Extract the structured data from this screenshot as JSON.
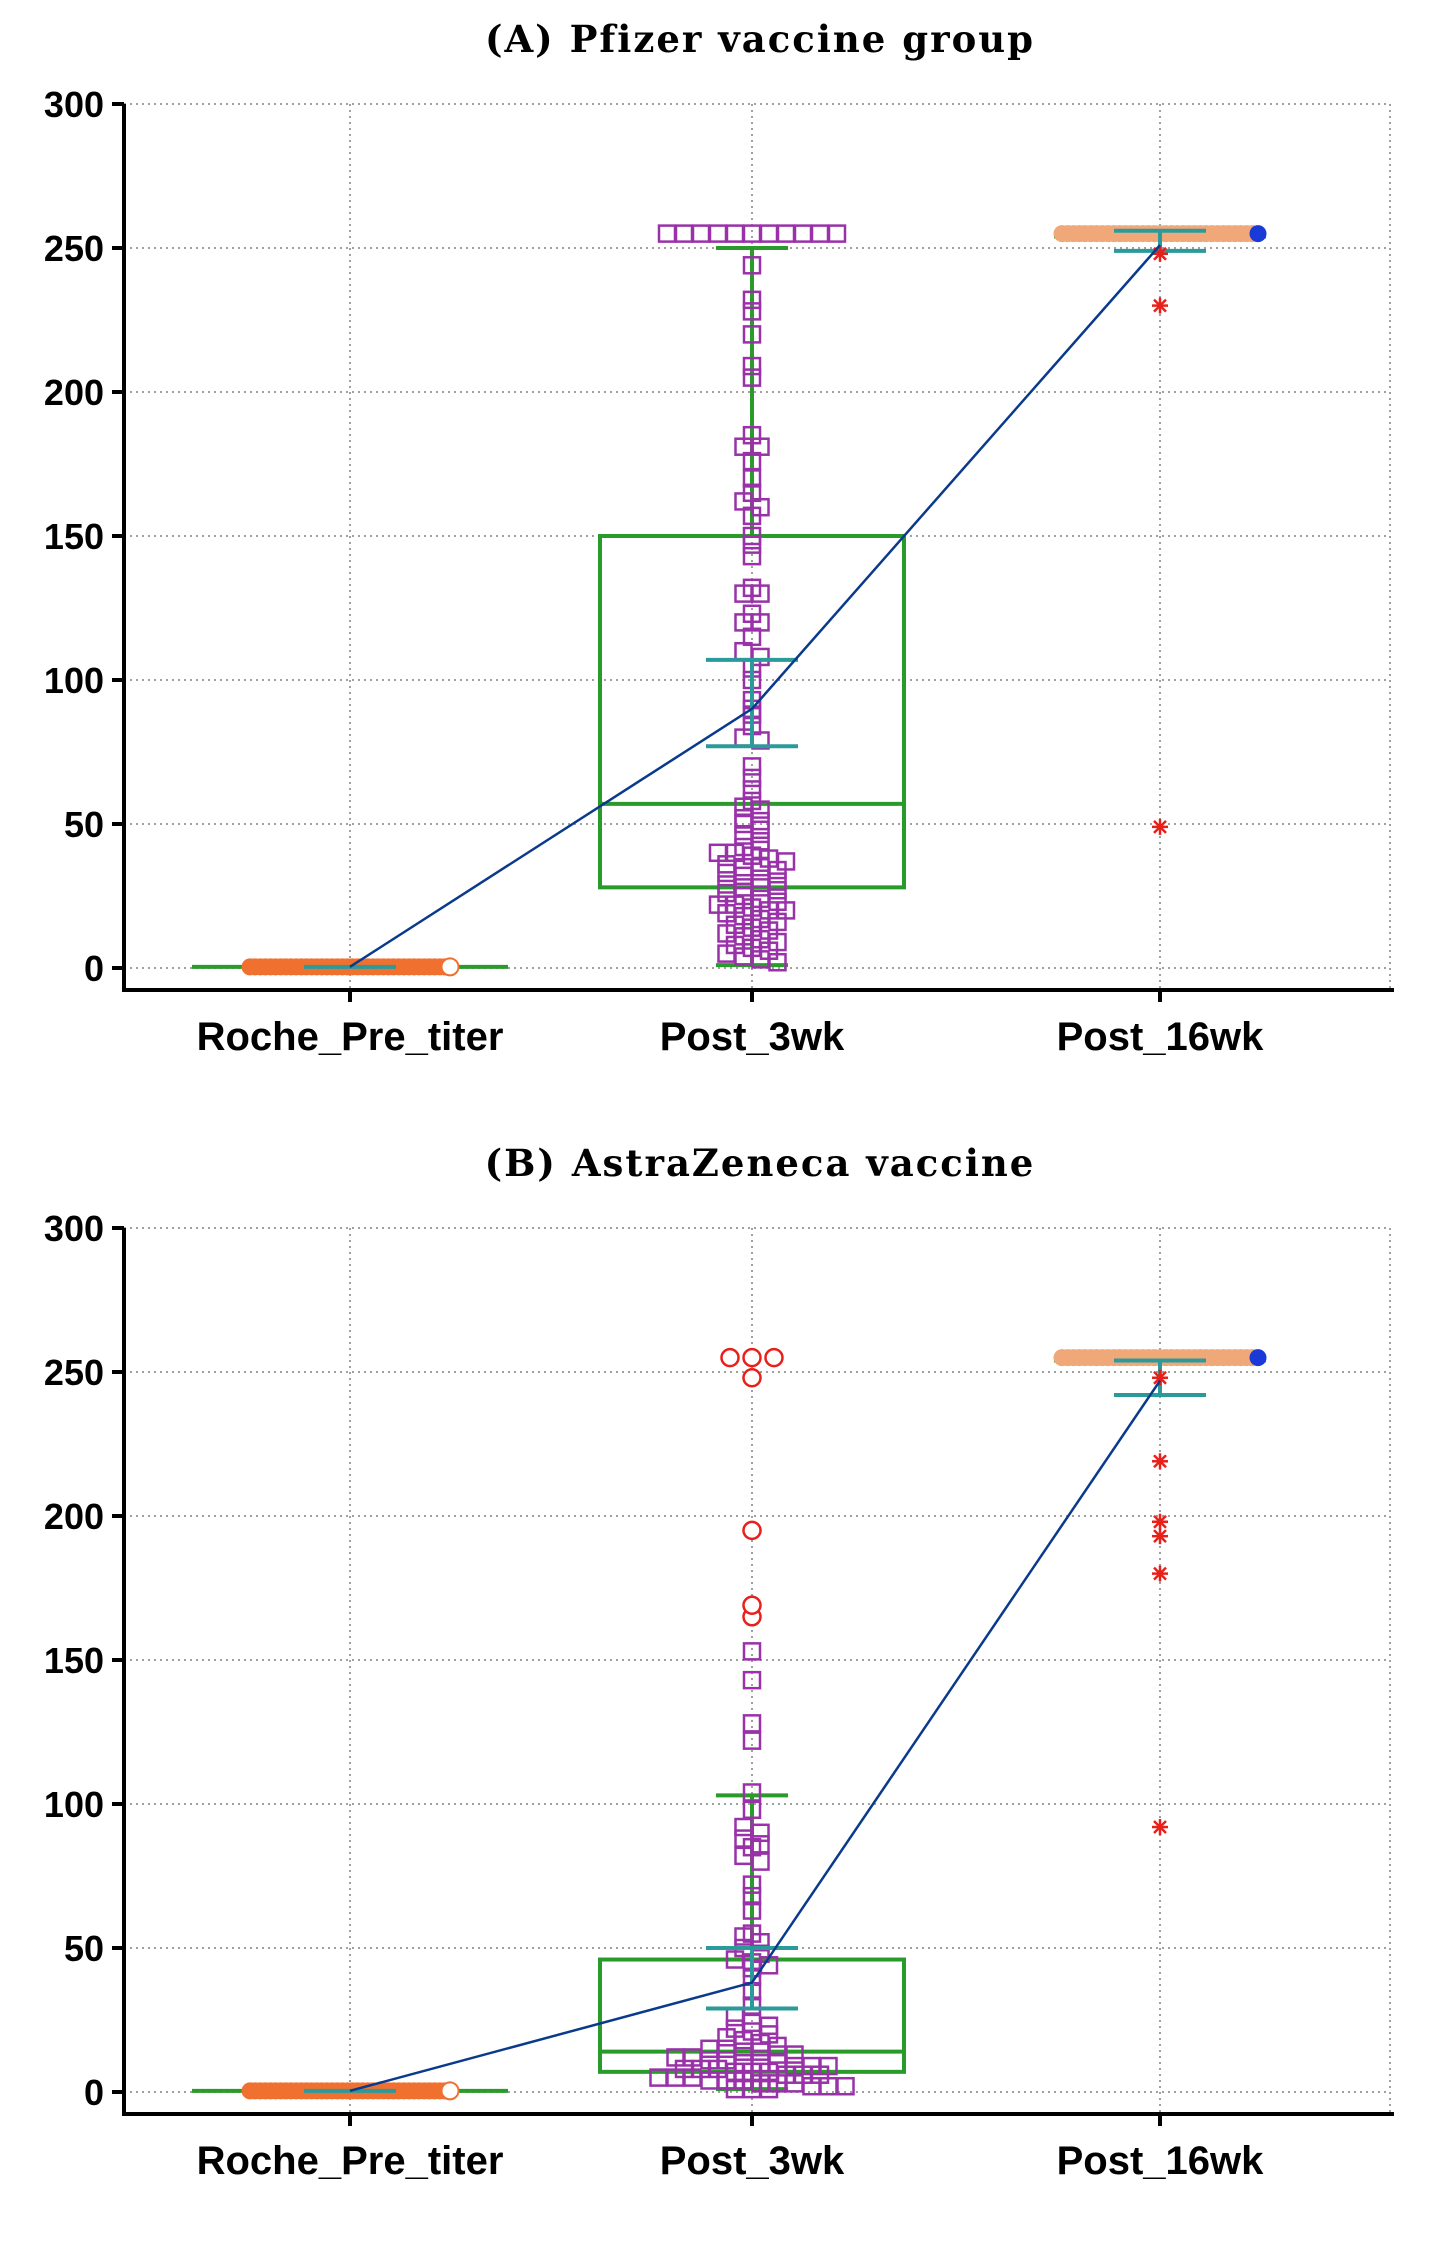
{
  "chart_data": [
    {
      "type": "box",
      "title": "(A) Pfizer vaccine group",
      "xlabel": "",
      "ylabel": "",
      "categories": [
        "Roche_Pre_titer",
        "Post_3wk",
        "Post_16wk"
      ],
      "ylim": [
        0,
        300
      ],
      "yticks": [
        0,
        50,
        100,
        150,
        200,
        250,
        300
      ],
      "grid": true,
      "boxes": [
        {
          "category": "Roche_Pre_titer",
          "q1": 0.4,
          "median": 0.4,
          "q3": 0.4,
          "whisker_low": 0.4,
          "whisker_high": 0.4,
          "ci_low": 0.4,
          "ci_high": 0.4,
          "mean": 0.4
        },
        {
          "category": "Post_3wk",
          "q1": 28,
          "median": 57,
          "q3": 150,
          "whisker_low": 1,
          "whisker_high": 250,
          "ci_low": 77,
          "ci_high": 107,
          "mean": 90
        },
        {
          "category": "Post_16wk",
          "q1": 254,
          "median": 254,
          "q3": 254,
          "whisker_low": 254,
          "whisker_high": 254,
          "ci_low": 249,
          "ci_high": 256,
          "mean": 251
        }
      ],
      "points": [
        {
          "category": "Roche_Pre_titer",
          "marker": "circle",
          "color": "#f07030",
          "values": [
            0.4,
            0.4,
            0.4,
            0.4,
            0.4,
            0.4,
            0.4,
            0.4,
            0.4,
            0.4,
            0.4,
            0.4,
            0.4,
            0.4,
            0.4,
            0.4,
            0.4,
            0.4,
            0.4,
            0.4,
            0.4,
            0.4,
            0.4,
            0.4,
            0.4,
            0.4,
            0.4,
            0.4,
            0.4,
            0.4,
            0.4,
            0.4,
            0.4,
            0.4,
            0.4,
            0.4,
            0.4,
            0.4,
            0.4,
            0.4
          ]
        },
        {
          "category": "Post_3wk",
          "marker": "square",
          "color": "#9932a8",
          "values": [
            255,
            255,
            255,
            255,
            255,
            255,
            255,
            255,
            255,
            255,
            255,
            244,
            232,
            228,
            220,
            209,
            205,
            185,
            181,
            181,
            176,
            170,
            165,
            162,
            160,
            157,
            150,
            147,
            143,
            132,
            130,
            130,
            123,
            120,
            120,
            115,
            110,
            108,
            104,
            100,
            93,
            90,
            88,
            84,
            80,
            79,
            70,
            66,
            62,
            58,
            56,
            55,
            52,
            51,
            50,
            48,
            46,
            44,
            42,
            41,
            40,
            40,
            39,
            38,
            37,
            36,
            35,
            35,
            34,
            33,
            32,
            31,
            30,
            29,
            28,
            28,
            27,
            26,
            25,
            24,
            23,
            22,
            22,
            21,
            20,
            20,
            19,
            18,
            17,
            16,
            15,
            14,
            13,
            12,
            11,
            10,
            9,
            8,
            7,
            6,
            5,
            4,
            3,
            2
          ]
        },
        {
          "category": "Post_16wk",
          "marker": "circle",
          "color": "#f0a878",
          "values": [
            255,
            255,
            255,
            255,
            255,
            255,
            255,
            255,
            255,
            255,
            255,
            255,
            255,
            255,
            255,
            255,
            255,
            255,
            255,
            255,
            255,
            255,
            255,
            255,
            255,
            255,
            255,
            255,
            255,
            255,
            255,
            255,
            255,
            255,
            255
          ]
        }
      ],
      "outliers": [
        {
          "category": "Post_16wk",
          "marker": "asterisk",
          "color": "#e8201a",
          "values": [
            248,
            230,
            49
          ]
        }
      ],
      "mean_line": {
        "color": "#0a3a8c",
        "values": [
          0.4,
          90,
          251
        ]
      }
    },
    {
      "type": "box",
      "title": "(B) AstraZeneca vaccine",
      "xlabel": "",
      "ylabel": "",
      "categories": [
        "Roche_Pre_titer",
        "Post_3wk",
        "Post_16wk"
      ],
      "ylim": [
        0,
        300
      ],
      "yticks": [
        0,
        50,
        100,
        150,
        200,
        250,
        300
      ],
      "grid": true,
      "boxes": [
        {
          "category": "Roche_Pre_titer",
          "q1": 0.4,
          "median": 0.4,
          "q3": 0.4,
          "whisker_low": 0.4,
          "whisker_high": 0.4,
          "ci_low": 0.4,
          "ci_high": 0.4,
          "mean": 0.4
        },
        {
          "category": "Post_3wk",
          "q1": 7,
          "median": 14,
          "q3": 46,
          "whisker_low": 1,
          "whisker_high": 103,
          "ci_low": 29,
          "ci_high": 50,
          "mean": 38
        },
        {
          "category": "Post_16wk",
          "q1": 254,
          "median": 254,
          "q3": 254,
          "whisker_low": 254,
          "whisker_high": 254,
          "ci_low": 242,
          "ci_high": 254,
          "mean": 247
        }
      ],
      "points": [
        {
          "category": "Roche_Pre_titer",
          "marker": "circle",
          "color": "#f07030",
          "values": [
            0.4,
            0.4,
            0.4,
            0.4,
            0.4,
            0.4,
            0.4,
            0.4,
            0.4,
            0.4,
            0.4,
            0.4,
            0.4,
            0.4,
            0.4,
            0.4,
            0.4,
            0.4,
            0.4,
            0.4,
            0.4,
            0.4,
            0.4,
            0.4,
            0.4,
            0.4,
            0.4,
            0.4,
            0.4,
            0.4,
            0.4,
            0.4,
            0.4,
            0.4,
            0.4,
            0.4,
            0.4,
            0.4,
            0.4,
            0.4
          ]
        },
        {
          "category": "Post_3wk",
          "marker": "square",
          "color": "#9932a8",
          "values": [
            153,
            143,
            128,
            122,
            104,
            98,
            92,
            90,
            88,
            86,
            85,
            82,
            80,
            72,
            68,
            63,
            55,
            54,
            52,
            50,
            48,
            46,
            45,
            44,
            43,
            40,
            35,
            30,
            26,
            24,
            23,
            22,
            21,
            20,
            19,
            18,
            17,
            16,
            15,
            15,
            14,
            14,
            13,
            13,
            12,
            12,
            11,
            11,
            10,
            10,
            10,
            9,
            9,
            9,
            8,
            8,
            8,
            7,
            7,
            7,
            6,
            6,
            6,
            5,
            5,
            5,
            4,
            4,
            4,
            3,
            3,
            3,
            2,
            2,
            2,
            1,
            1,
            1
          ]
        },
        {
          "category": "Post_16wk",
          "marker": "circle",
          "color": "#f0a878",
          "values": [
            255,
            255,
            255,
            255,
            255,
            255,
            255,
            255,
            255,
            255,
            255,
            255,
            255,
            255,
            255,
            255,
            255,
            255,
            255,
            255,
            255,
            255,
            255,
            255,
            255,
            255,
            255,
            255,
            255,
            255,
            255,
            255,
            255,
            255,
            255
          ]
        }
      ],
      "outliers": [
        {
          "category": "Post_3wk",
          "marker": "open-circle",
          "color": "#e8201a",
          "values": [
            255,
            255,
            255,
            248,
            195,
            169,
            165
          ]
        },
        {
          "category": "Post_16wk",
          "marker": "asterisk",
          "color": "#e8201a",
          "values": [
            248,
            219,
            198,
            193,
            180,
            92
          ]
        }
      ],
      "mean_line": {
        "color": "#0a3a8c",
        "values": [
          0.4,
          38,
          247
        ]
      }
    }
  ],
  "colors": {
    "box": "#2a9a2a",
    "ci": "#2a9a9a",
    "grid": "#a0a0a0",
    "axis": "#000000",
    "last_point": "#1a3ad8"
  }
}
